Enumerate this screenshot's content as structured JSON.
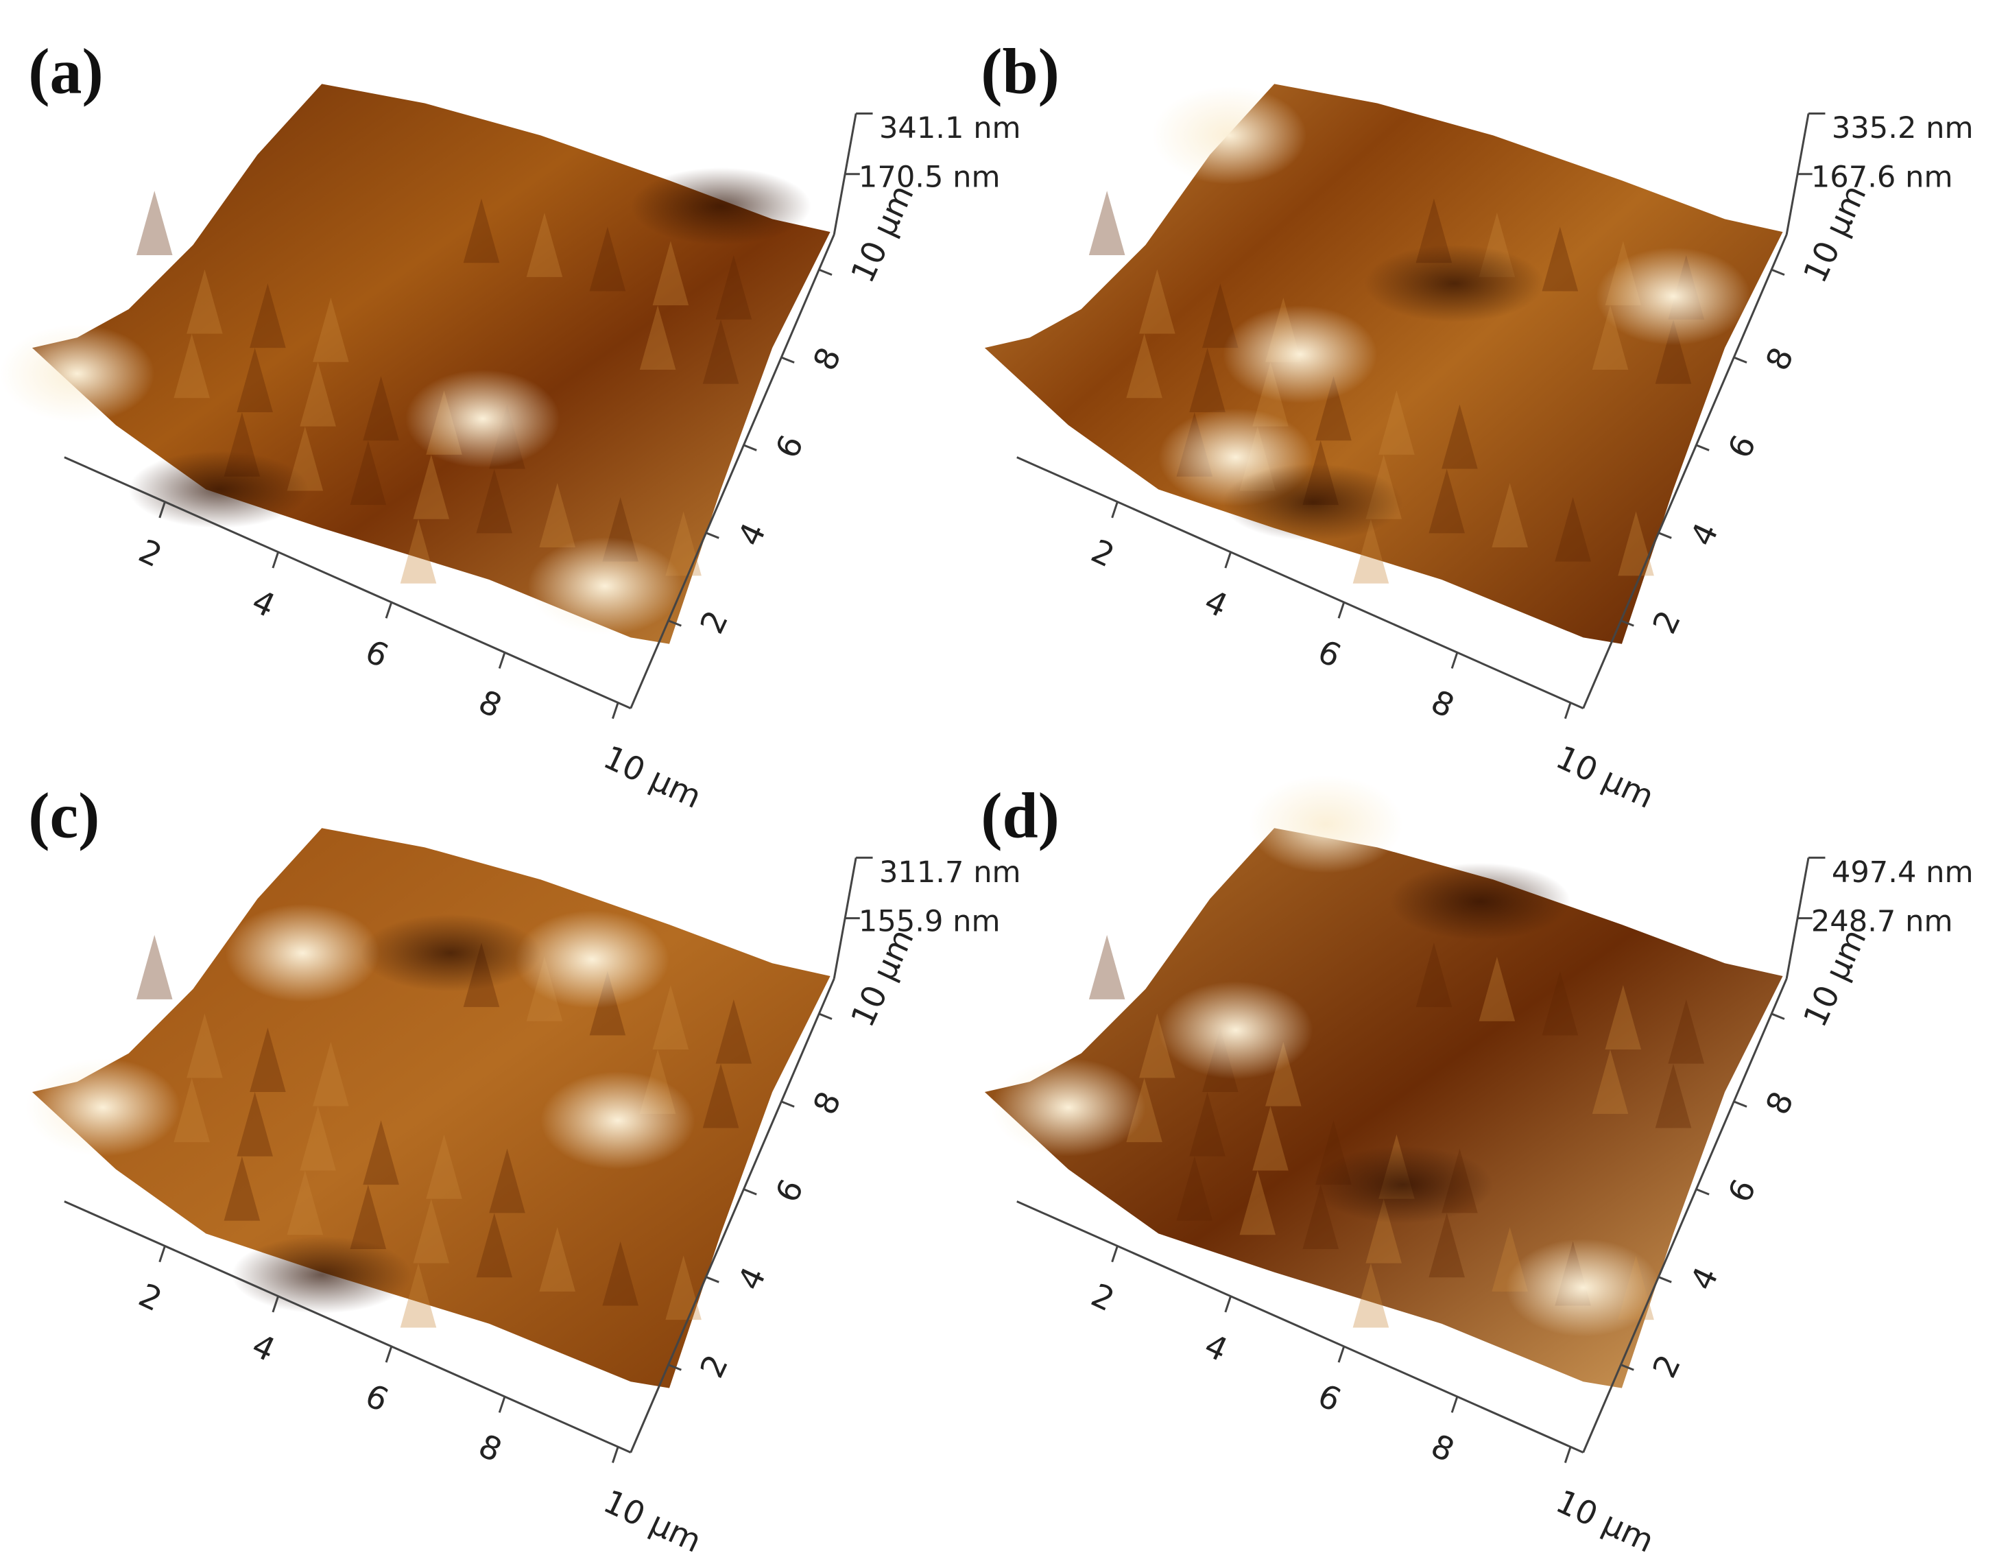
{
  "panels": [
    {
      "label": "(a)",
      "z_labels": [
        "341.1 nm",
        "170.5 nm"
      ],
      "x_ticks": [
        "2",
        "4",
        "6",
        "8",
        "10 µm"
      ],
      "y_ticks": [
        "2",
        "4",
        "6",
        "8",
        "10 µm"
      ]
    },
    {
      "label": "(b)",
      "z_labels": [
        "335.2 nm",
        "167.6 nm"
      ],
      "x_ticks": [
        "2",
        "4",
        "6",
        "8",
        "10 µm"
      ],
      "y_ticks": [
        "2",
        "4",
        "6",
        "8",
        "10 µm"
      ]
    },
    {
      "label": "(c)",
      "z_labels": [
        "311.7 nm",
        "155.9 nm"
      ],
      "x_ticks": [
        "2",
        "4",
        "6",
        "8",
        "10 µm"
      ],
      "y_ticks": [
        "2",
        "4",
        "6",
        "8",
        "10 µm"
      ]
    },
    {
      "label": "(d)",
      "z_labels": [
        "497.4 nm",
        "248.7 nm"
      ],
      "x_ticks": [
        "2",
        "4",
        "6",
        "8",
        "10 µm"
      ],
      "y_ticks": [
        "2",
        "4",
        "6",
        "8",
        "10 µm"
      ]
    }
  ]
}
